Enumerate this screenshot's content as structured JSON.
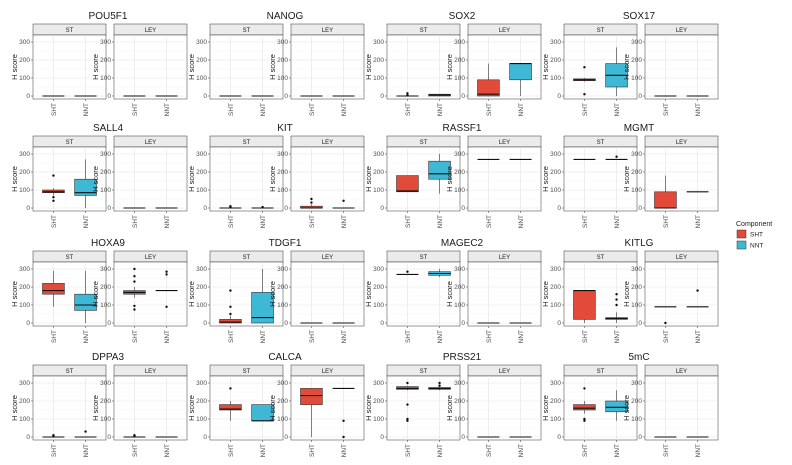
{
  "chart_data": {
    "type": "box",
    "y_axis_label": "H score",
    "y_ticks": [
      0,
      100,
      200,
      300
    ],
    "ylim": [
      0,
      300
    ],
    "x_categories": [
      "SHT",
      "NNT"
    ],
    "facets": [
      "ST",
      "LEY"
    ],
    "legend": {
      "title": "Component",
      "position": "right",
      "items": [
        {
          "label": "SHT",
          "color": "#e24b3a"
        },
        {
          "label": "NNT",
          "color": "#3fb8d6"
        }
      ]
    },
    "panels": [
      {
        "title": "POU5F1",
        "ST": {
          "SHT": {
            "median": 0
          },
          "NNT": {
            "median": 0
          }
        },
        "LEY": {
          "SHT": {
            "median": 0
          },
          "NNT": {
            "median": 0
          }
        }
      },
      {
        "title": "NANOG",
        "ST": {
          "SHT": {
            "median": 0
          },
          "NNT": {
            "median": 0
          }
        },
        "LEY": {
          "SHT": {
            "median": 0
          },
          "NNT": {
            "median": 0
          }
        }
      },
      {
        "title": "SOX2",
        "ST": {
          "SHT": {
            "median": 0,
            "outliers": [
              5,
              15
            ]
          },
          "NNT": {
            "q1": 0,
            "median": 5,
            "q3": 10,
            "wlo": 0,
            "whi": 10
          }
        },
        "LEY": {
          "SHT": {
            "q1": 0,
            "median": 10,
            "q3": 90,
            "wlo": 0,
            "whi": 180
          },
          "NNT": {
            "q1": 90,
            "median": 180,
            "q3": 180,
            "wlo": 0,
            "whi": 180
          }
        }
      },
      {
        "title": "SOX17",
        "ST": {
          "SHT": {
            "q1": 85,
            "median": 90,
            "q3": 95,
            "wlo": 80,
            "whi": 100,
            "outliers": [
              10,
              160
            ]
          },
          "NNT": {
            "q1": 50,
            "median": 115,
            "q3": 180,
            "wlo": 0,
            "whi": 270
          }
        },
        "LEY": {
          "SHT": {
            "median": 0
          },
          "NNT": {
            "median": 0
          }
        }
      },
      {
        "title": "SALL4",
        "ST": {
          "SHT": {
            "q1": 85,
            "median": 90,
            "q3": 100,
            "wlo": 70,
            "whi": 110,
            "outliers": [
              40,
              60,
              180
            ]
          },
          "NNT": {
            "q1": 70,
            "median": 85,
            "q3": 160,
            "wlo": 0,
            "whi": 270
          }
        },
        "LEY": {
          "SHT": {
            "median": 0
          },
          "NNT": {
            "median": 0
          }
        }
      },
      {
        "title": "KIT",
        "ST": {
          "SHT": {
            "median": 0,
            "outliers": [
              5,
              10
            ]
          },
          "NNT": {
            "median": 0,
            "outliers": [
              5
            ]
          }
        },
        "LEY": {
          "SHT": {
            "q1": 0,
            "median": 0,
            "q3": 10,
            "wlo": 0,
            "whi": 20,
            "outliers": [
              30,
              50
            ]
          },
          "NNT": {
            "median": 0,
            "outliers": [
              40
            ]
          }
        }
      },
      {
        "title": "RASSF1",
        "ST": {
          "SHT": {
            "q1": 90,
            "median": 95,
            "q3": 180,
            "wlo": 90,
            "whi": 180
          },
          "NNT": {
            "q1": 160,
            "median": 190,
            "q3": 260,
            "wlo": 80,
            "whi": 300
          }
        },
        "LEY": {
          "SHT": {
            "median": 270
          },
          "NNT": {
            "median": 270
          }
        }
      },
      {
        "title": "MGMT",
        "ST": {
          "SHT": {
            "median": 270
          },
          "NNT": {
            "median": 270,
            "outliers": [
              285
            ]
          }
        },
        "LEY": {
          "SHT": {
            "q1": 0,
            "median": 0,
            "q3": 90,
            "wlo": 0,
            "whi": 180
          },
          "NNT": {
            "median": 90
          }
        }
      },
      {
        "title": "HOXA9",
        "ST": {
          "SHT": {
            "q1": 160,
            "median": 180,
            "q3": 220,
            "wlo": 90,
            "whi": 290
          },
          "NNT": {
            "q1": 70,
            "median": 100,
            "q3": 160,
            "wlo": 0,
            "whi": 290
          }
        },
        "LEY": {
          "SHT": {
            "q1": 160,
            "median": 170,
            "q3": 180,
            "wlo": 140,
            "whi": 200,
            "outliers": [
              75,
              95,
              230,
              260,
              300
            ]
          },
          "NNT": {
            "median": 180,
            "outliers": [
              90,
              270,
              285
            ]
          }
        }
      },
      {
        "title": "TDGF1",
        "ST": {
          "SHT": {
            "q1": 0,
            "median": 5,
            "q3": 20,
            "wlo": 0,
            "whi": 40,
            "outliers": [
              50,
              90,
              180
            ]
          },
          "NNT": {
            "q1": 0,
            "median": 30,
            "q3": 170,
            "wlo": 0,
            "whi": 300
          }
        },
        "LEY": {
          "SHT": {
            "median": 0
          },
          "NNT": {
            "median": 0
          }
        }
      },
      {
        "title": "MAGEC2",
        "ST": {
          "SHT": {
            "median": 270,
            "outliers": [
              285
            ]
          },
          "NNT": {
            "q1": 265,
            "median": 275,
            "q3": 285,
            "wlo": 255,
            "whi": 300
          }
        },
        "LEY": {
          "SHT": {
            "median": 0
          },
          "NNT": {
            "median": 0
          }
        }
      },
      {
        "title": "KITLG",
        "ST": {
          "SHT": {
            "q1": 20,
            "median": 180,
            "q3": 180,
            "wlo": 0,
            "whi": 180
          },
          "NNT": {
            "q1": 20,
            "median": 25,
            "q3": 30,
            "wlo": 0,
            "whi": 60,
            "outliers": [
              100,
              130,
              160
            ]
          }
        },
        "LEY": {
          "SHT": {
            "median": 90,
            "outliers": [
              0
            ]
          },
          "NNT": {
            "median": 90,
            "outliers": [
              180
            ]
          }
        }
      },
      {
        "title": "DPPA3",
        "ST": {
          "SHT": {
            "median": 0,
            "outliers": [
              5,
              10
            ]
          },
          "NNT": {
            "median": 0,
            "outliers": [
              30
            ]
          }
        },
        "LEY": {
          "SHT": {
            "median": 0,
            "outliers": [
              5,
              10
            ]
          },
          "NNT": {
            "median": 0
          }
        }
      },
      {
        "title": "CALCA",
        "ST": {
          "SHT": {
            "q1": 150,
            "median": 155,
            "q3": 180,
            "wlo": 90,
            "whi": 200,
            "outliers": [
              270
            ]
          },
          "NNT": {
            "q1": 90,
            "median": 90,
            "q3": 180,
            "wlo": 90,
            "whi": 180
          }
        },
        "LEY": {
          "SHT": {
            "q1": 180,
            "median": 230,
            "q3": 270,
            "wlo": 0,
            "whi": 270
          },
          "NNT": {
            "median": 270,
            "outliers": [
              0,
              90
            ]
          }
        }
      },
      {
        "title": "PRSS21",
        "ST": {
          "SHT": {
            "q1": 265,
            "median": 270,
            "q3": 280,
            "wlo": 260,
            "whi": 285,
            "outliers": [
              90,
              100,
              180,
              300
            ]
          },
          "NNT": {
            "q1": 265,
            "median": 270,
            "q3": 275,
            "wlo": 260,
            "whi": 280,
            "outliers": [
              285,
              300
            ]
          }
        },
        "LEY": {
          "SHT": {
            "median": 0
          },
          "NNT": {
            "median": 0
          }
        }
      },
      {
        "title": "5mC",
        "ST": {
          "SHT": {
            "q1": 150,
            "median": 160,
            "q3": 180,
            "wlo": 130,
            "whi": 200,
            "outliers": [
              90,
              100,
              270
            ]
          },
          "NNT": {
            "q1": 140,
            "median": 165,
            "q3": 200,
            "wlo": 90,
            "whi": 260
          }
        },
        "LEY": {
          "SHT": {
            "median": 0
          },
          "NNT": {
            "median": 0
          }
        }
      }
    ]
  }
}
